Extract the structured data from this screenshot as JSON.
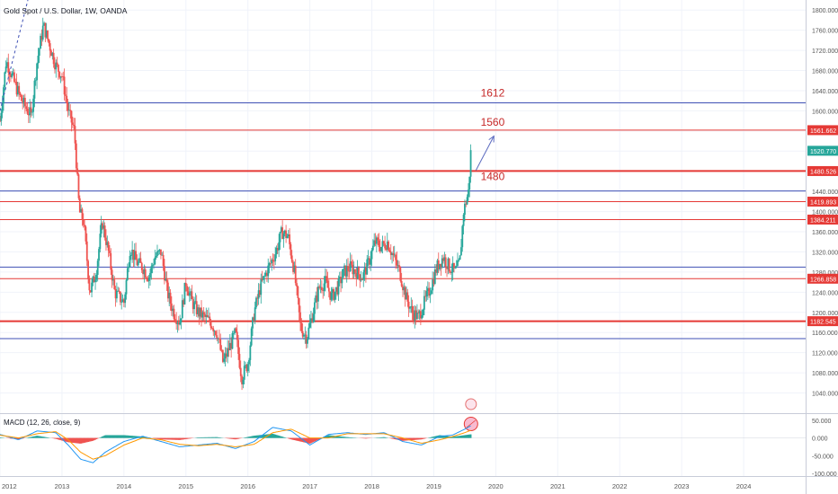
{
  "header": {
    "symbol_title": "Gold Spot / U.S. Dollar, 1W, OANDA"
  },
  "colors": {
    "up": "#26a69a",
    "down": "#ef5350",
    "red_line": "#e53935",
    "blue_line": "#3f51b5",
    "macd_line": "#2196f3",
    "signal_line": "#ff9800",
    "grid": "#f0f3fa",
    "axis_text": "#555555",
    "annotation_text": "#c62828"
  },
  "chart_data": {
    "type": "candlestick",
    "title": "Gold Spot / U.S. Dollar, 1W, OANDA",
    "price_axis": {
      "ylim": [
        1000,
        1820
      ],
      "ticks": [
        1040,
        1080,
        1120,
        1160,
        1200,
        1240,
        1280,
        1320,
        1360,
        1400,
        1440,
        1480,
        1520,
        1560,
        1600,
        1640,
        1680,
        1720,
        1760,
        1800
      ],
      "tick_labels": [
        "1040.000",
        "1080.000",
        "1120.000",
        "1160.000",
        "1200.000",
        "1240.000",
        "1280.000",
        "1320.000",
        "1360.000",
        "1400.000",
        "1440.000",
        "1480.000",
        "1520.000",
        "1560.000",
        "1600.000",
        "1640.000",
        "1680.000",
        "1720.000",
        "1760.000",
        "1800.000"
      ]
    },
    "time_axis": {
      "xlim": [
        2012.0,
        2025.0
      ],
      "ticks": [
        2012,
        2013,
        2014,
        2015,
        2016,
        2017,
        2018,
        2019,
        2020,
        2021,
        2022,
        2023,
        2024
      ],
      "tick_labels": [
        "2012",
        "2013",
        "2014",
        "2015",
        "2016",
        "2017",
        "2018",
        "2019",
        "2020",
        "2021",
        "2022",
        "2023",
        "2024"
      ]
    },
    "price_path": {
      "t": [
        2012.0,
        2012.1,
        2012.25,
        2012.35,
        2012.5,
        2012.6,
        2012.7,
        2012.8,
        2012.9,
        2013.0,
        2013.1,
        2013.2,
        2013.28,
        2013.35,
        2013.45,
        2013.55,
        2013.65,
        2013.75,
        2013.85,
        2014.0,
        2014.1,
        2014.2,
        2014.3,
        2014.4,
        2014.5,
        2014.6,
        2014.7,
        2014.8,
        2014.9,
        2015.0,
        2015.1,
        2015.2,
        2015.3,
        2015.4,
        2015.5,
        2015.6,
        2015.7,
        2015.8,
        2015.9,
        2016.0,
        2016.1,
        2016.2,
        2016.3,
        2016.45,
        2016.55,
        2016.65,
        2016.75,
        2016.85,
        2016.95,
        2017.05,
        2017.15,
        2017.25,
        2017.35,
        2017.45,
        2017.55,
        2017.65,
        2017.75,
        2017.85,
        2017.95,
        2018.05,
        2018.15,
        2018.25,
        2018.35,
        2018.45,
        2018.55,
        2018.65,
        2018.75,
        2018.85,
        2018.95,
        2019.05,
        2019.15,
        2019.25,
        2019.35,
        2019.42,
        2019.48,
        2019.52,
        2019.56,
        2019.6
      ],
      "close": [
        1580,
        1700,
        1650,
        1620,
        1590,
        1700,
        1770,
        1730,
        1690,
        1670,
        1600,
        1560,
        1400,
        1380,
        1240,
        1280,
        1380,
        1320,
        1240,
        1220,
        1330,
        1300,
        1290,
        1270,
        1310,
        1320,
        1240,
        1200,
        1180,
        1260,
        1220,
        1200,
        1190,
        1180,
        1160,
        1100,
        1130,
        1160,
        1070,
        1100,
        1200,
        1250,
        1280,
        1320,
        1360,
        1350,
        1280,
        1170,
        1150,
        1200,
        1250,
        1260,
        1230,
        1250,
        1280,
        1290,
        1280,
        1270,
        1300,
        1340,
        1330,
        1340,
        1310,
        1280,
        1230,
        1200,
        1190,
        1220,
        1250,
        1290,
        1310,
        1290,
        1280,
        1300,
        1400,
        1420,
        1440,
        1525
      ]
    },
    "current_price": "1520.770",
    "horizontal_levels": [
      {
        "value": 1616,
        "color": "blue"
      },
      {
        "value": 1561.662,
        "label": "1561.662",
        "color": "red"
      },
      {
        "value": 1480.526,
        "label": "1480.526",
        "color": "red",
        "thick": true
      },
      {
        "value": 1441,
        "color": "blue"
      },
      {
        "value": 1419.893,
        "label": "1419.893",
        "color": "red"
      },
      {
        "value": 1384.211,
        "label": "1384.211",
        "color": "red"
      },
      {
        "value": 1290,
        "color": "blue"
      },
      {
        "value": 1266.858,
        "label": "1266.858",
        "color": "red"
      },
      {
        "value": 1182.545,
        "label": "1182.545",
        "color": "red",
        "thick": true
      },
      {
        "value": 1148,
        "color": "blue"
      }
    ],
    "annotations": [
      {
        "text": "1612",
        "t": 2019.95,
        "price": 1628
      },
      {
        "text": "1560",
        "t": 2019.95,
        "price": 1570
      },
      {
        "text": "1480",
        "t": 2019.95,
        "price": 1463
      }
    ],
    "projection_arrow": {
      "from": [
        2019.68,
        1482
      ],
      "to": [
        2019.97,
        1550
      ]
    },
    "earlier_trendline": {
      "from": [
        2012.0,
        1600
      ],
      "to": [
        2012.45,
        1820
      ]
    },
    "macd": {
      "label": "MACD (12, 26, close, 9)",
      "ylim": [
        -100,
        60
      ],
      "ticks": [
        50,
        0,
        -50,
        -100
      ],
      "tick_labels": [
        "50.000",
        "0.000",
        "-50.000",
        "-100.000"
      ],
      "t": [
        2012.0,
        2012.3,
        2012.6,
        2012.9,
        2013.1,
        2013.3,
        2013.5,
        2013.7,
        2014.0,
        2014.3,
        2014.6,
        2014.9,
        2015.2,
        2015.5,
        2015.8,
        2016.1,
        2016.4,
        2016.7,
        2017.0,
        2017.3,
        2017.6,
        2017.9,
        2018.2,
        2018.5,
        2018.8,
        2019.1,
        2019.3,
        2019.5,
        2019.6
      ],
      "macd_line": [
        10,
        -5,
        20,
        15,
        -20,
        -60,
        -70,
        -40,
        -10,
        5,
        -10,
        -25,
        -20,
        -15,
        -30,
        -10,
        30,
        20,
        -20,
        10,
        15,
        10,
        15,
        -10,
        -20,
        5,
        8,
        25,
        35
      ],
      "signal_line": [
        8,
        0,
        12,
        18,
        -5,
        -40,
        -60,
        -50,
        -20,
        0,
        -5,
        -18,
        -22,
        -18,
        -25,
        -18,
        15,
        25,
        0,
        0,
        12,
        12,
        12,
        0,
        -15,
        -5,
        4,
        15,
        22
      ]
    }
  }
}
